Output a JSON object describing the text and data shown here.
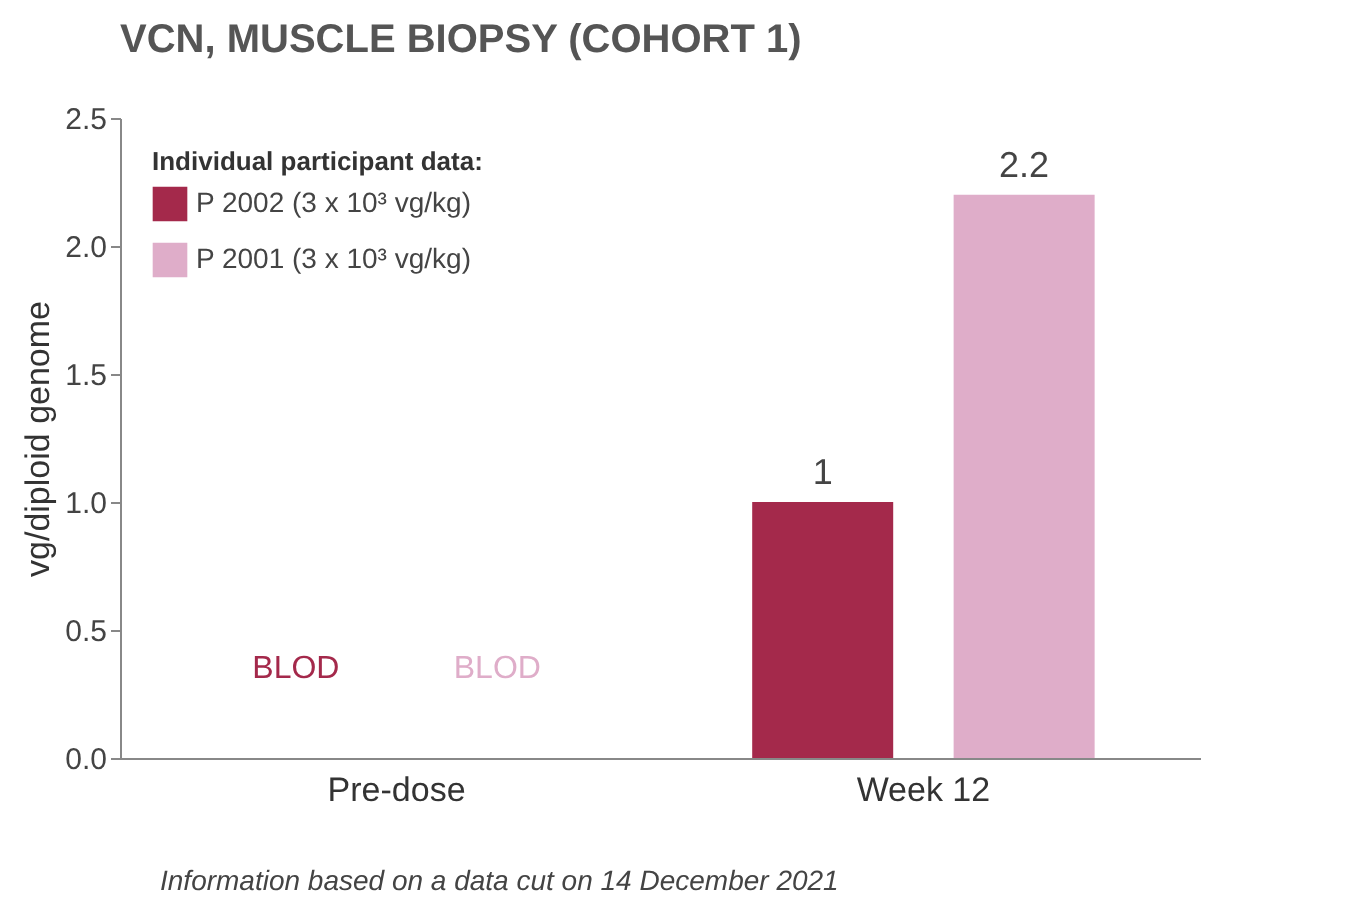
{
  "chart_data": {
    "type": "bar",
    "title": "VCN, MUSCLE BIOPSY (COHORT 1)",
    "ylabel": "vg/diploid genome",
    "legend_title": "Individual participant data:",
    "categories": [
      "Pre-dose",
      "Week 12"
    ],
    "series": [
      {
        "name": "P 2002 (3 x 10³ vg/kg)",
        "color": "#a4294b",
        "values": [
          null,
          1
        ],
        "value_labels": [
          "BLOD",
          "1"
        ]
      },
      {
        "name": "P 2001 (3 x 10³ vg/kg)",
        "color": "#dfadc9",
        "values": [
          null,
          2.2
        ],
        "value_labels": [
          "BLOD",
          "2.2"
        ]
      }
    ],
    "ylim": [
      0,
      2.5
    ],
    "yticks": [
      {
        "value": 0,
        "label": "0.0"
      },
      {
        "value": 0.5,
        "label": "0.5"
      },
      {
        "value": 1,
        "label": "1.0"
      },
      {
        "value": 1.5,
        "label": "1.5"
      },
      {
        "value": 2,
        "label": "2.0"
      },
      {
        "value": 2.5,
        "label": "2.5"
      }
    ],
    "grid": false,
    "legend": "top left",
    "annotations": [
      "Information based on a data cut on 14 December 2021"
    ]
  }
}
